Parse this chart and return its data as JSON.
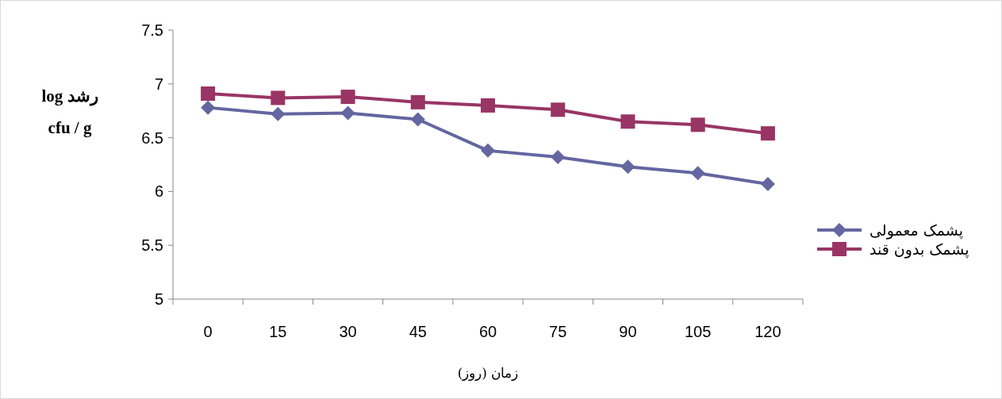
{
  "chart_data": {
    "type": "line",
    "xlabel": "زمان (روز)",
    "ylabel": "log رشد\ncfu / g",
    "categories": [
      "0",
      "15",
      "30",
      "45",
      "60",
      "75",
      "90",
      "105",
      "120"
    ],
    "series": [
      {
        "name": "پشمک معمولی",
        "color": "#6466a0",
        "marker": "diamond",
        "values": [
          6.78,
          6.72,
          6.73,
          6.67,
          6.38,
          6.32,
          6.23,
          6.17,
          6.07
        ]
      },
      {
        "name": "پشمک بدون قند",
        "color": "#983565",
        "marker": "square",
        "values": [
          6.91,
          6.87,
          6.88,
          6.83,
          6.8,
          6.76,
          6.65,
          6.62,
          6.54
        ]
      }
    ],
    "ylim": [
      5,
      7.5
    ],
    "yticks": [
      5,
      5.5,
      6,
      6.5,
      7,
      7.5
    ],
    "grid": false,
    "legend": "right"
  }
}
